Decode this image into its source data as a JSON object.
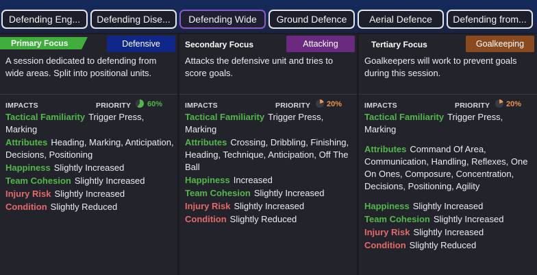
{
  "tabs": [
    {
      "label": "Defending Eng...",
      "active": false
    },
    {
      "label": "Defending Dise...",
      "active": false
    },
    {
      "label": "Defending Wide",
      "active": true
    },
    {
      "label": "Ground Defence",
      "active": false
    },
    {
      "label": "Aerial Defence",
      "active": false
    },
    {
      "label": "Defending from...",
      "active": false
    }
  ],
  "panels": [
    {
      "focus_label": "Primary Focus",
      "badge": "Defensive",
      "badge_color": "#10278a",
      "description": "A session dedicated to defending from wide areas. Split into positional units.",
      "impacts_label": "IMPACTS",
      "priority_label": "PRIORITY",
      "priority_value": "60%",
      "priority_fraction": 0.6,
      "priority_color": "#52b84a",
      "tactical_familiarity": {
        "key": "Tactical Familiarity",
        "value": "Trigger Press, Marking"
      },
      "attributes": {
        "key": "Attributes",
        "value": "Heading, Marking, Anticipation, Decisions, Positioning"
      },
      "happiness": {
        "key": "Happiness",
        "value": "Slightly Increased"
      },
      "team_cohesion": {
        "key": "Team Cohesion",
        "value": "Slightly Increased"
      },
      "injury_risk": {
        "key": "Injury Risk",
        "value": "Slightly Increased"
      },
      "condition": {
        "key": "Condition",
        "value": "Slightly Reduced"
      }
    },
    {
      "focus_label": "Secondary Focus",
      "badge": "Attacking",
      "badge_color": "#6a2a80",
      "description": "Attacks the defensive unit and tries to score goals.",
      "impacts_label": "IMPACTS",
      "priority_label": "PRIORITY",
      "priority_value": "20%",
      "priority_fraction": 0.2,
      "priority_color": "#e8944a",
      "tactical_familiarity": {
        "key": "Tactical Familiarity",
        "value": "Trigger Press, Marking"
      },
      "attributes": {
        "key": "Attributes",
        "value": "Crossing, Dribbling, Finishing, Heading, Technique, Anticipation, Off The Ball"
      },
      "happiness": {
        "key": "Happiness",
        "value": "Increased"
      },
      "team_cohesion": {
        "key": "Team Cohesion",
        "value": "Slightly Increased"
      },
      "injury_risk": {
        "key": "Injury Risk",
        "value": "Slightly Increased"
      },
      "condition": {
        "key": "Condition",
        "value": "Slightly Reduced"
      }
    },
    {
      "focus_label": "Tertiary Focus",
      "badge": "Goalkeeping",
      "badge_color": "#8a4a1f",
      "description": "Goalkeepers will work to prevent goals during this session.",
      "impacts_label": "IMPACTS",
      "priority_label": "PRIORITY",
      "priority_value": "20%",
      "priority_fraction": 0.2,
      "priority_color": "#e8944a",
      "tactical_familiarity": {
        "key": "Tactical Familiarity",
        "value": "Trigger Press, Marking"
      },
      "attributes": {
        "key": "Attributes",
        "value": "Command Of Area, Communication, Handling, Reflexes, One On Ones, Composure, Concentration, Decisions, Positioning, Agility"
      },
      "happiness": {
        "key": "Happiness",
        "value": "Slightly Increased"
      },
      "team_cohesion": {
        "key": "Team Cohesion",
        "value": "Slightly Increased"
      },
      "injury_risk": {
        "key": "Injury Risk",
        "value": "Slightly Increased"
      },
      "condition": {
        "key": "Condition",
        "value": "Slightly Reduced"
      }
    }
  ]
}
